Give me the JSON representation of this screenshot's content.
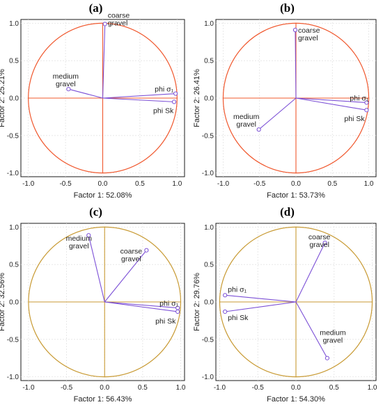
{
  "colors": {
    "vector": "#7b4fd6",
    "circle_red": "#f0582e",
    "circle_gold": "#c89a33",
    "grid": "#e3e3e3",
    "frame": "#1a1a1a"
  },
  "chart_data": [
    {
      "type": "scatter",
      "panel": "(a)",
      "xlabel": "Factor 1: 52.08%",
      "ylabel": "Factor 2: 25.21%",
      "xlim": [
        -1.1,
        1.1
      ],
      "ylim": [
        -1.05,
        1.05
      ],
      "xticks": [
        "-1.0",
        "-0.5",
        "0.0",
        "0.5",
        "1.0"
      ],
      "yticks": [
        "1.0",
        "0.5",
        "0.0",
        "-0.5",
        "-1.0"
      ],
      "circle_color": "circle_red",
      "grid": true,
      "vectors": [
        {
          "label": [
            "coarse",
            "gravel"
          ],
          "x": 0.03,
          "y": 0.99
        },
        {
          "label": [
            "medium",
            "gravel"
          ],
          "x": -0.46,
          "y": 0.12
        },
        {
          "label": [
            "phi σ₁"
          ],
          "x": 0.98,
          "y": 0.06
        },
        {
          "label": [
            "phi Sk"
          ],
          "x": 0.96,
          "y": -0.05
        }
      ]
    },
    {
      "type": "scatter",
      "panel": "(b)",
      "xlabel": "Factor 1: 53.73%",
      "ylabel": "Factor 2: 26.41%",
      "xlim": [
        -1.1,
        1.1
      ],
      "ylim": [
        -1.05,
        1.05
      ],
      "xticks": [
        "-1.0",
        "-0.5",
        "0.0",
        "0.5",
        "1.0"
      ],
      "yticks": [
        "1.0",
        "0.5",
        "0.0",
        "-0.5",
        "-1.0"
      ],
      "circle_color": "circle_red",
      "grid": true,
      "vectors": [
        {
          "label": [
            "coarse",
            "gravel"
          ],
          "x": -0.01,
          "y": 0.91
        },
        {
          "label": [
            "medium",
            "gravel"
          ],
          "x": -0.51,
          "y": -0.42
        },
        {
          "label": [
            "phi σ₁"
          ],
          "x": 0.97,
          "y": -0.06
        },
        {
          "label": [
            "phi Sk"
          ],
          "x": 0.97,
          "y": -0.16
        }
      ]
    },
    {
      "type": "scatter",
      "panel": "(c)",
      "xlabel": "Factor 1: 56.43%",
      "ylabel": "Factor 2: 32.56%",
      "xlim": [
        -1.1,
        1.05
      ],
      "ylim": [
        -1.05,
        1.05
      ],
      "xticks": [
        "-1.0",
        "-0.5",
        "0.0",
        "0.5",
        "1.0"
      ],
      "yticks": [
        "1.0",
        "0.5",
        "0.0",
        "-0.5",
        "-1.0"
      ],
      "circle_color": "circle_gold",
      "grid": true,
      "vectors": [
        {
          "label": [
            "medium",
            "gravel"
          ],
          "x": -0.21,
          "y": 0.89
        },
        {
          "label": [
            "coarse",
            "gravel"
          ],
          "x": 0.55,
          "y": 0.69
        },
        {
          "label": [
            "phi σ₁"
          ],
          "x": 0.96,
          "y": -0.08
        },
        {
          "label": [
            "phi Sk"
          ],
          "x": 0.96,
          "y": -0.13
        }
      ]
    },
    {
      "type": "scatter",
      "panel": "(d)",
      "xlabel": "Factor 1: 54.30%",
      "ylabel": "Factor 2: 29.76%",
      "xlim": [
        -1.05,
        1.05
      ],
      "ylim": [
        -1.05,
        1.05
      ],
      "xticks": [
        "-1.0",
        "-0.5",
        "0.0",
        "0.5",
        "1.0"
      ],
      "yticks": [
        "1.0",
        "0.5",
        "0.0",
        "-0.5",
        "-1.0"
      ],
      "circle_color": "circle_gold",
      "grid": true,
      "vectors": [
        {
          "label": [
            "coarse",
            "gravel"
          ],
          "x": 0.38,
          "y": 0.79
        },
        {
          "label": [
            "phi σ₁"
          ],
          "x": -0.93,
          "y": 0.09
        },
        {
          "label": [
            "phi Sk"
          ],
          "x": -0.93,
          "y": -0.13
        },
        {
          "label": [
            "medium",
            "gravel"
          ],
          "x": 0.41,
          "y": -0.75
        }
      ]
    }
  ]
}
